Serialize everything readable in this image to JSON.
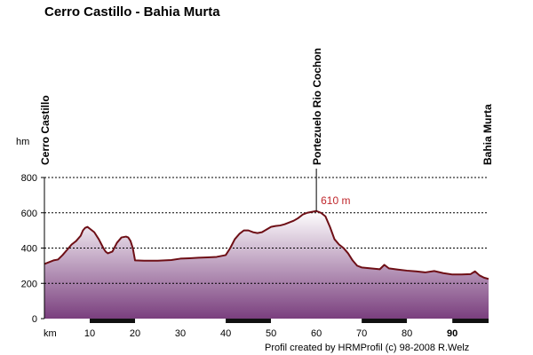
{
  "title": "Cerro Castillo - Bahia Murta",
  "footer": "Profil created by HRMProfil (c) 98-2008 R.Welz",
  "colors": {
    "line": "#6e0f16",
    "fill_top": "#ffffff",
    "fill_bottom": "#7a3f7e",
    "peak_label": "#c0282d",
    "grid": "#000000",
    "km_bar_dark": "#111111",
    "km_bar_light": "#ffffff"
  },
  "chart_data": {
    "type": "area",
    "xlabel": "km",
    "ylabel": "hm",
    "xlim": [
      0,
      98
    ],
    "ylim": [
      0,
      800
    ],
    "x_ticks": [
      10,
      20,
      30,
      40,
      50,
      60,
      70,
      80,
      90
    ],
    "x_tick_labels": [
      "10",
      "20",
      "30",
      "40",
      "50",
      "60",
      "70",
      "80",
      "90"
    ],
    "y_ticks": [
      0,
      200,
      400,
      600,
      800
    ],
    "y_tick_labels": [
      "0",
      "200",
      "400",
      "600",
      "800"
    ],
    "grid": "horizontal dashed",
    "km_bar_segments": [
      {
        "from": 0,
        "to": 10,
        "shade": "light"
      },
      {
        "from": 10,
        "to": 20,
        "shade": "dark"
      },
      {
        "from": 20,
        "to": 40,
        "shade": "light"
      },
      {
        "from": 40,
        "to": 50,
        "shade": "dark"
      },
      {
        "from": 50,
        "to": 70,
        "shade": "light"
      },
      {
        "from": 70,
        "to": 80,
        "shade": "dark"
      },
      {
        "from": 80,
        "to": 90,
        "shade": "light"
      },
      {
        "from": 90,
        "to": 98,
        "shade": "dark"
      }
    ],
    "waypoints": [
      {
        "name": "Cerro Castillo",
        "x": 0
      },
      {
        "name": "Portezuelo Rio Cochon",
        "x": 60
      },
      {
        "name": "Bahia Murta",
        "x": 98
      }
    ],
    "peak": {
      "x": 60,
      "y": 610,
      "label": "610 m"
    },
    "points": [
      [
        0,
        310
      ],
      [
        1,
        320
      ],
      [
        2,
        330
      ],
      [
        3,
        335
      ],
      [
        4,
        360
      ],
      [
        5,
        390
      ],
      [
        6,
        420
      ],
      [
        7,
        440
      ],
      [
        8,
        470
      ],
      [
        8.5,
        500
      ],
      [
        9,
        515
      ],
      [
        9.5,
        520
      ],
      [
        10,
        510
      ],
      [
        10.5,
        500
      ],
      [
        11,
        490
      ],
      [
        12,
        450
      ],
      [
        13,
        400
      ],
      [
        13.5,
        380
      ],
      [
        14,
        370
      ],
      [
        15,
        380
      ],
      [
        16,
        430
      ],
      [
        17,
        460
      ],
      [
        18,
        465
      ],
      [
        18.5,
        460
      ],
      [
        19,
        440
      ],
      [
        19.5,
        400
      ],
      [
        20,
        330
      ],
      [
        22,
        328
      ],
      [
        25,
        328
      ],
      [
        28,
        332
      ],
      [
        30,
        340
      ],
      [
        32,
        342
      ],
      [
        34,
        345
      ],
      [
        36,
        347
      ],
      [
        38,
        350
      ],
      [
        40,
        360
      ],
      [
        41,
        400
      ],
      [
        42,
        450
      ],
      [
        43,
        480
      ],
      [
        44,
        500
      ],
      [
        45,
        500
      ],
      [
        46,
        490
      ],
      [
        47,
        485
      ],
      [
        48,
        490
      ],
      [
        49,
        505
      ],
      [
        50,
        520
      ],
      [
        51,
        525
      ],
      [
        52,
        528
      ],
      [
        53,
        535
      ],
      [
        54,
        545
      ],
      [
        55,
        555
      ],
      [
        56,
        570
      ],
      [
        57,
        590
      ],
      [
        58,
        600
      ],
      [
        59,
        605
      ],
      [
        60,
        610
      ],
      [
        61,
        600
      ],
      [
        62,
        580
      ],
      [
        63,
        520
      ],
      [
        64,
        450
      ],
      [
        65,
        420
      ],
      [
        66,
        400
      ],
      [
        67,
        370
      ],
      [
        68,
        330
      ],
      [
        69,
        300
      ],
      [
        70,
        290
      ],
      [
        72,
        285
      ],
      [
        74,
        280
      ],
      [
        75,
        305
      ],
      [
        76,
        285
      ],
      [
        78,
        278
      ],
      [
        80,
        272
      ],
      [
        82,
        268
      ],
      [
        84,
        262
      ],
      [
        86,
        270
      ],
      [
        88,
        258
      ],
      [
        90,
        250
      ],
      [
        92,
        250
      ],
      [
        94,
        252
      ],
      [
        95,
        268
      ],
      [
        96,
        245
      ],
      [
        97,
        232
      ],
      [
        98,
        225
      ]
    ]
  }
}
